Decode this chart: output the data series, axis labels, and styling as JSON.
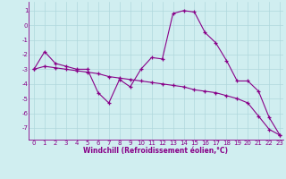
{
  "line1_x": [
    0,
    1,
    2,
    3,
    4,
    5,
    6,
    7,
    8,
    9,
    10,
    11,
    12,
    13,
    14,
    15,
    16,
    17,
    18,
    19,
    20,
    21,
    22,
    23
  ],
  "line1_y": [
    -3.0,
    -1.8,
    -2.6,
    -2.8,
    -3.0,
    -3.0,
    -4.6,
    -5.3,
    -3.7,
    -4.2,
    -3.0,
    -2.2,
    -2.3,
    0.8,
    1.0,
    0.9,
    -0.5,
    -1.2,
    -2.4,
    -3.8,
    -3.8,
    -4.5,
    -6.3,
    -7.5
  ],
  "line2_x": [
    0,
    1,
    2,
    3,
    4,
    5,
    6,
    7,
    8,
    9,
    10,
    11,
    12,
    13,
    14,
    15,
    16,
    17,
    18,
    19,
    20,
    21,
    22,
    23
  ],
  "line2_y": [
    -3.0,
    -2.8,
    -2.9,
    -3.0,
    -3.1,
    -3.2,
    -3.3,
    -3.5,
    -3.6,
    -3.7,
    -3.8,
    -3.9,
    -4.0,
    -4.1,
    -4.2,
    -4.4,
    -4.5,
    -4.6,
    -4.8,
    -5.0,
    -5.3,
    -6.2,
    -7.1,
    -7.5
  ],
  "line_color": "#880088",
  "marker": "+",
  "markersize": 3,
  "linewidth": 0.8,
  "xlabel": "Windchill (Refroidissement éolien,°C)",
  "xlim_min": -0.5,
  "xlim_max": 23.3,
  "ylim_min": -7.8,
  "ylim_max": 1.6,
  "yticks": [
    1,
    0,
    -1,
    -2,
    -3,
    -4,
    -5,
    -6,
    -7
  ],
  "xticks": [
    0,
    1,
    2,
    3,
    4,
    5,
    6,
    7,
    8,
    9,
    10,
    11,
    12,
    13,
    14,
    15,
    16,
    17,
    18,
    19,
    20,
    21,
    22,
    23
  ],
  "bg_color": "#d0eef0",
  "grid_color": "#b0d8dc",
  "tick_color": "#880088",
  "label_color": "#880088",
  "tick_fontsize": 5,
  "xlabel_fontsize": 5.5
}
